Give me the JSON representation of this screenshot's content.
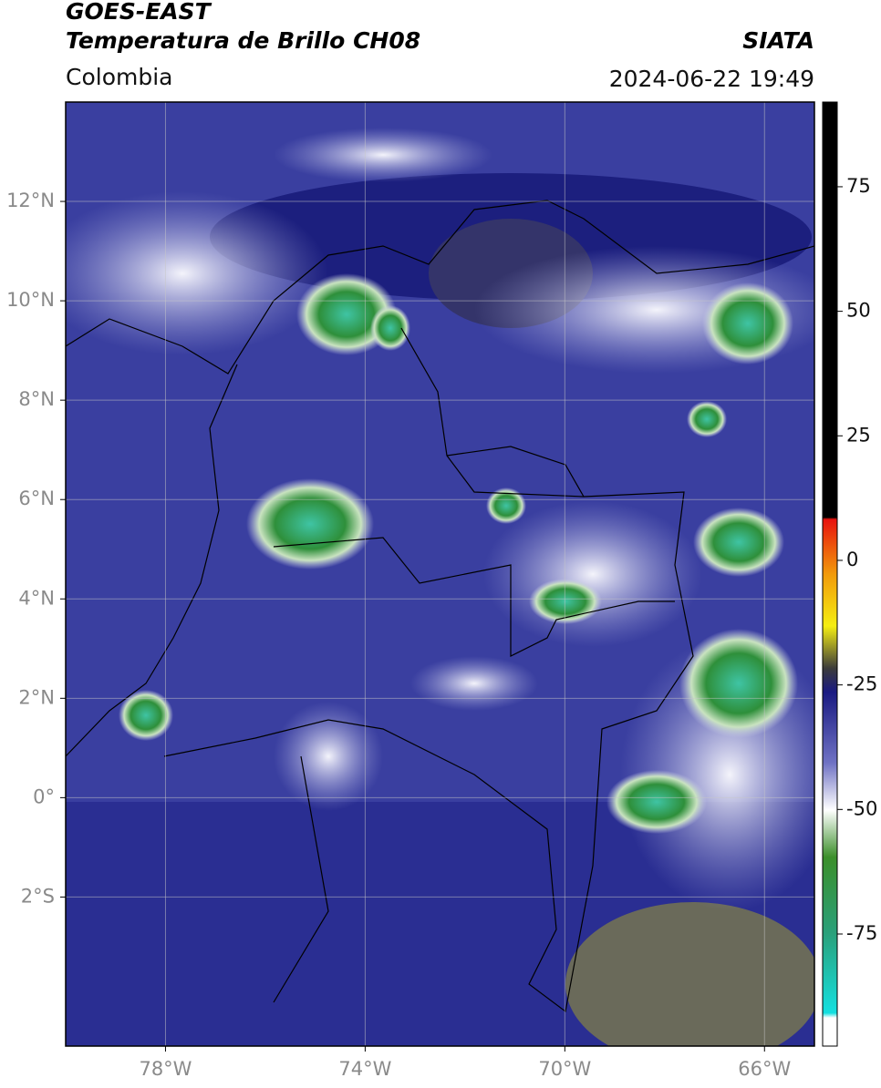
{
  "header": {
    "title_line1": "GOES-EAST",
    "title_line2": "Temperatura de Brillo CH08",
    "source": "SIATA",
    "region": "Colombia",
    "timestamp": "2024-06-22 19:49"
  },
  "map": {
    "xlim": [
      -80,
      -65
    ],
    "ylim": [
      -5,
      14
    ],
    "xticks": [
      {
        "value": -78,
        "label": "78°W"
      },
      {
        "value": -74,
        "label": "74°W"
      },
      {
        "value": -70,
        "label": "70°W"
      },
      {
        "value": -66,
        "label": "66°W"
      }
    ],
    "yticks": [
      {
        "value": 12,
        "label": "12°N"
      },
      {
        "value": 10,
        "label": "10°N"
      },
      {
        "value": 8,
        "label": "8°N"
      },
      {
        "value": 6,
        "label": "6°N"
      },
      {
        "value": 4,
        "label": "4°N"
      },
      {
        "value": 2,
        "label": "2°N"
      },
      {
        "value": 0,
        "label": "0°"
      },
      {
        "value": -2,
        "label": "2°S"
      }
    ]
  },
  "colorbar": {
    "lim": [
      -97.5,
      92
    ],
    "ticks": [
      75,
      50,
      25,
      0,
      -25,
      -50,
      -75
    ]
  }
}
